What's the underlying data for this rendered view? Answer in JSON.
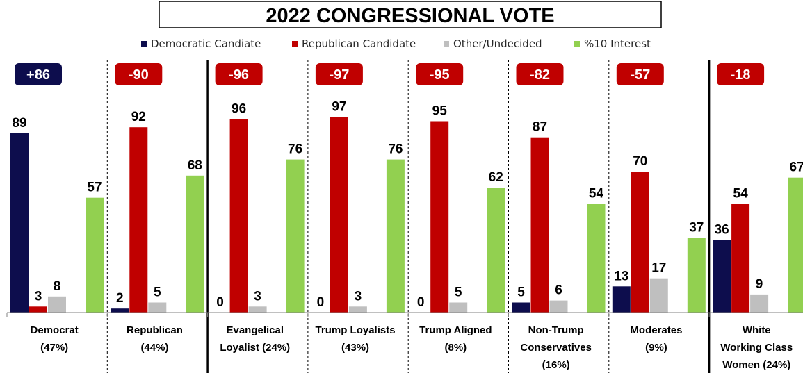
{
  "chart_data": {
    "type": "bar",
    "title": "2022 CONGRESSIONAL VOTE",
    "series": [
      {
        "name": "Democratic Candiate",
        "color": "#0d0d4d",
        "values": [
          89,
          2,
          0,
          0,
          0,
          5,
          13,
          36
        ]
      },
      {
        "name": "Republican Candidate",
        "color": "#c00000",
        "values": [
          3,
          92,
          96,
          97,
          95,
          87,
          70,
          54
        ]
      },
      {
        "name": "Other/Undecided",
        "color": "#bfbfbf",
        "values": [
          8,
          5,
          3,
          3,
          5,
          6,
          17,
          9
        ]
      },
      {
        "name": "%10 Interest",
        "color": "#92d050",
        "values": [
          57,
          68,
          76,
          76,
          62,
          54,
          37,
          67
        ]
      }
    ],
    "categories": [
      [
        "Democrat",
        "(47%)"
      ],
      [
        "Republican",
        "(44%)"
      ],
      [
        "Evangelical",
        "Loyalist (24%)"
      ],
      [
        "Trump Loyalists",
        "(43%)"
      ],
      [
        "Trump Aligned",
        "(8%)"
      ],
      [
        "Non-Trump",
        "Conservatives",
        "(16%)"
      ],
      [
        "Moderates",
        "(9%)"
      ],
      [
        "White",
        "Working Class",
        "Women (24%)"
      ]
    ],
    "margins": [
      "+86",
      "-90",
      "-96",
      "-97",
      "-95",
      "-82",
      "-57",
      "-18"
    ],
    "margin_colors": {
      "positive": "#0d0d4d",
      "negative": "#c00000"
    },
    "ylim": [
      0,
      100
    ],
    "legend_position": "top",
    "grid": false
  }
}
